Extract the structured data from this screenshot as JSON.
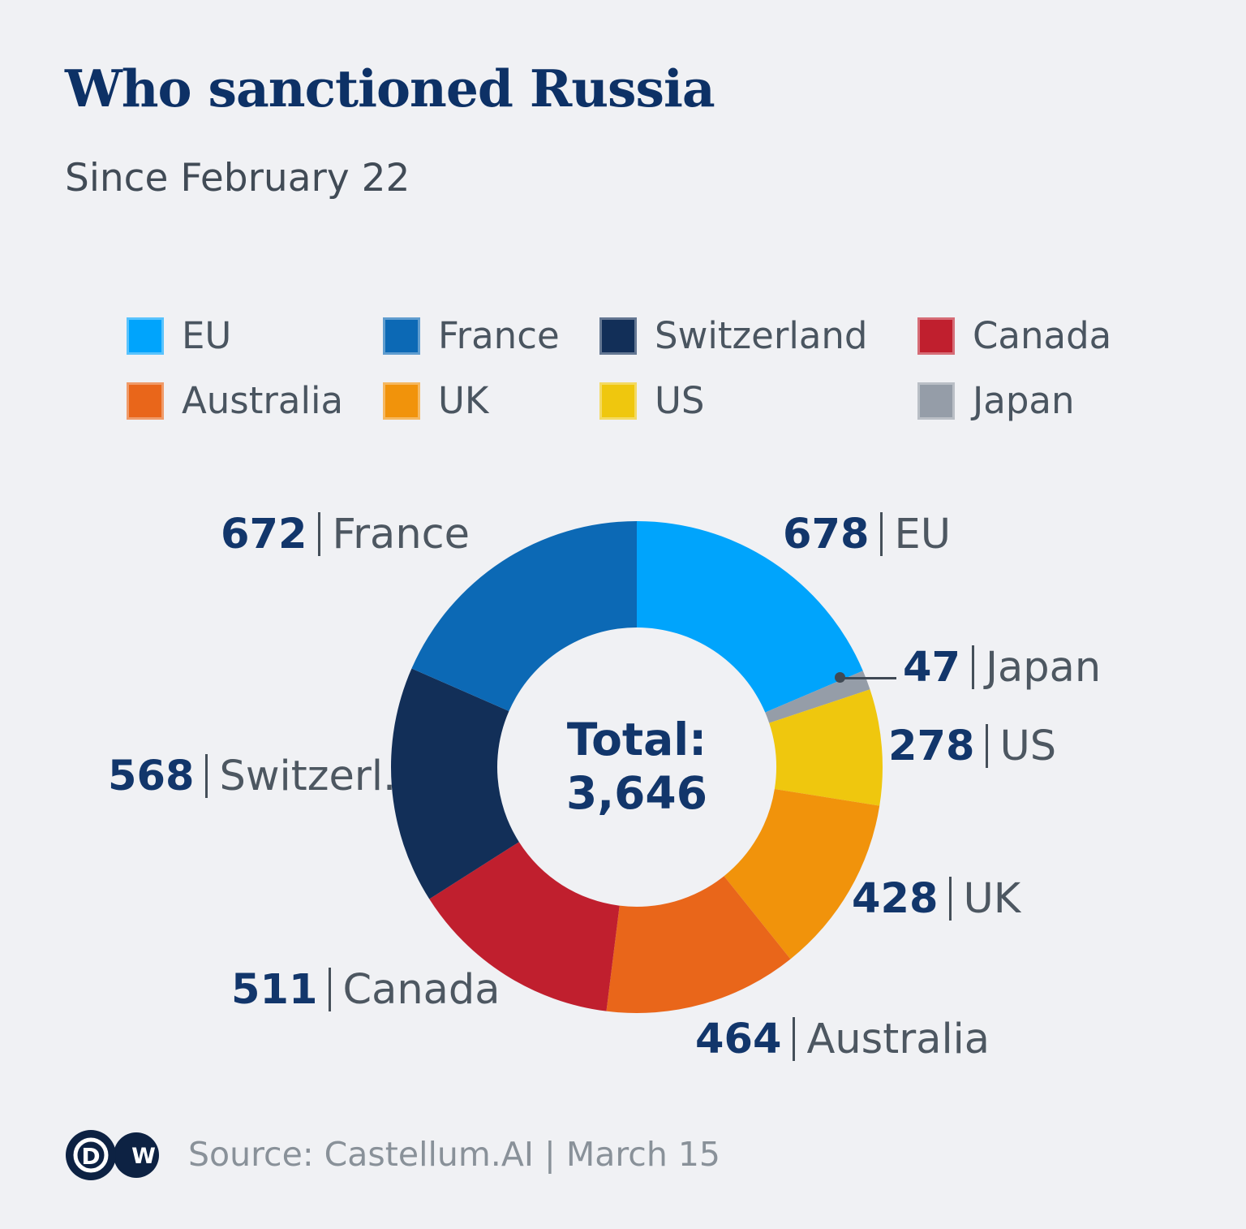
{
  "header": {
    "title": "Who sanctioned Russia",
    "subtitle": "Since February 22"
  },
  "legend": [
    {
      "label": "EU",
      "color": "#00a4fc"
    },
    {
      "label": "France",
      "color": "#0c69b5"
    },
    {
      "label": "Switzerland",
      "color": "#122f58"
    },
    {
      "label": "Canada",
      "color": "#c01f2e"
    },
    {
      "label": "Australia",
      "color": "#e9661a"
    },
    {
      "label": "UK",
      "color": "#f1930b"
    },
    {
      "label": "US",
      "color": "#efc70e"
    },
    {
      "label": "Japan",
      "color": "#959da8"
    }
  ],
  "chart_data": {
    "type": "pie",
    "variant": "donut",
    "title": "Who sanctioned Russia",
    "subtitle": "Since February 22",
    "total": 3646,
    "total_label": "Total:",
    "total_value": "3,646",
    "start_angle_deg": 0,
    "direction": "clockwise-from-top",
    "segments": [
      {
        "label": "EU",
        "value": 678,
        "color": "#00a4fc"
      },
      {
        "label": "Japan",
        "value": 47,
        "color": "#959da8"
      },
      {
        "label": "US",
        "value": 278,
        "color": "#efc70e"
      },
      {
        "label": "UK",
        "value": 428,
        "color": "#f1930b"
      },
      {
        "label": "Australia",
        "value": 464,
        "color": "#e9661a"
      },
      {
        "label": "Canada",
        "value": 511,
        "color": "#c01f2e"
      },
      {
        "label": "Switzerland",
        "value": 568,
        "color": "#122f58"
      },
      {
        "label": "France",
        "value": 672,
        "color": "#0c69b5"
      }
    ]
  },
  "callouts": {
    "france": {
      "value": "672",
      "name": "France"
    },
    "eu": {
      "value": "678",
      "name": "EU"
    },
    "japan": {
      "value": "47",
      "name": "Japan"
    },
    "us": {
      "value": "278",
      "name": "US"
    },
    "uk": {
      "value": "428",
      "name": "UK"
    },
    "australia": {
      "value": "464",
      "name": "Australia"
    },
    "canada": {
      "value": "511",
      "name": "Canada"
    },
    "switzerland": {
      "value": "568",
      "name": "Switzerl."
    }
  },
  "footer": {
    "source": "Source: Castellum.AI | March 15",
    "logo_letters": {
      "left": "D",
      "right": "W"
    }
  }
}
